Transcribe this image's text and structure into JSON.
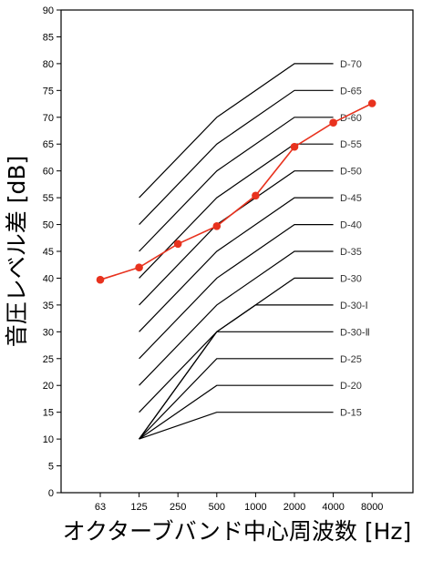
{
  "chart_data": {
    "type": "line",
    "title": "",
    "xlabel": "オクターブバンド中心周波数 [Hz]",
    "ylabel": "音圧レベル差 [dB]",
    "x_categories": [
      "63",
      "125",
      "250",
      "500",
      "1000",
      "2000",
      "4000",
      "8000"
    ],
    "ylim": [
      0,
      90
    ],
    "y_step": 5,
    "grid": false,
    "measured_series": {
      "color": "#e8321e",
      "points": [
        {
          "x": "63",
          "y": 39.7
        },
        {
          "x": "125",
          "y": 42.0
        },
        {
          "x": "250",
          "y": 46.4
        },
        {
          "x": "500",
          "y": 49.7
        },
        {
          "x": "1000",
          "y": 55.4
        },
        {
          "x": "2000",
          "y": 64.5
        },
        {
          "x": "4000",
          "y": 69.0
        },
        {
          "x": "8000",
          "y": 72.6
        }
      ]
    },
    "reference_curves": [
      {
        "label": "D-70",
        "values": {
          "125": 55,
          "500": 70,
          "2000": 80,
          "4000": 80
        }
      },
      {
        "label": "D-65",
        "values": {
          "125": 50,
          "500": 65,
          "2000": 75,
          "4000": 75
        }
      },
      {
        "label": "D-60",
        "values": {
          "125": 45,
          "500": 60,
          "2000": 70,
          "4000": 70
        }
      },
      {
        "label": "D-55",
        "values": {
          "125": 40,
          "500": 55,
          "2000": 65,
          "4000": 65
        }
      },
      {
        "label": "D-50",
        "values": {
          "125": 35,
          "500": 50,
          "2000": 60,
          "4000": 60
        }
      },
      {
        "label": "D-45",
        "values": {
          "125": 30,
          "500": 45,
          "2000": 55,
          "4000": 55
        }
      },
      {
        "label": "D-40",
        "values": {
          "125": 25,
          "500": 40,
          "2000": 50,
          "4000": 50
        }
      },
      {
        "label": "D-35",
        "values": {
          "125": 20,
          "500": 35,
          "2000": 45,
          "4000": 45
        }
      },
      {
        "label": "D-30",
        "values": {
          "125": 15,
          "500": 30,
          "2000": 40,
          "4000": 40
        }
      },
      {
        "label": "D-30-Ⅰ",
        "values": {
          "125": 10,
          "500": 30,
          "1000": 35,
          "4000": 35
        }
      },
      {
        "label": "D-30-Ⅱ",
        "values": {
          "125": 10,
          "500": 30,
          "4000": 30
        }
      },
      {
        "label": "D-25",
        "values": {
          "125": 10,
          "500": 25,
          "4000": 25
        }
      },
      {
        "label": "D-20",
        "values": {
          "125": 10,
          "500": 20,
          "4000": 20
        }
      },
      {
        "label": "D-15",
        "values": {
          "125": 10,
          "500": 15,
          "4000": 15
        }
      }
    ]
  }
}
